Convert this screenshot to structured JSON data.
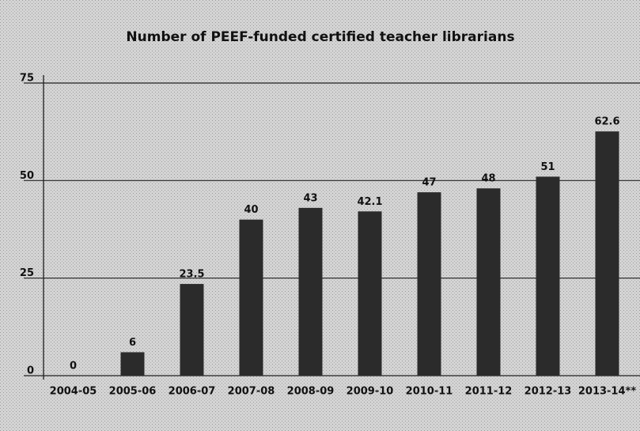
{
  "chart_data": {
    "type": "bar",
    "title": "Number of PEEF-funded certified teacher librarians",
    "categories": [
      "2004-05",
      "2005-06",
      "2006-07",
      "2007-08",
      "2008-09",
      "2009-10",
      "2010-11",
      "2011-12",
      "2012-13",
      "2013-14**"
    ],
    "values": [
      0,
      6,
      23.5,
      40,
      43,
      42.1,
      47,
      48,
      51,
      62.6
    ],
    "color": "#2b2b2b",
    "ylim": [
      0,
      75
    ],
    "yticks": [
      0,
      25,
      50,
      75
    ],
    "grid": true
  }
}
